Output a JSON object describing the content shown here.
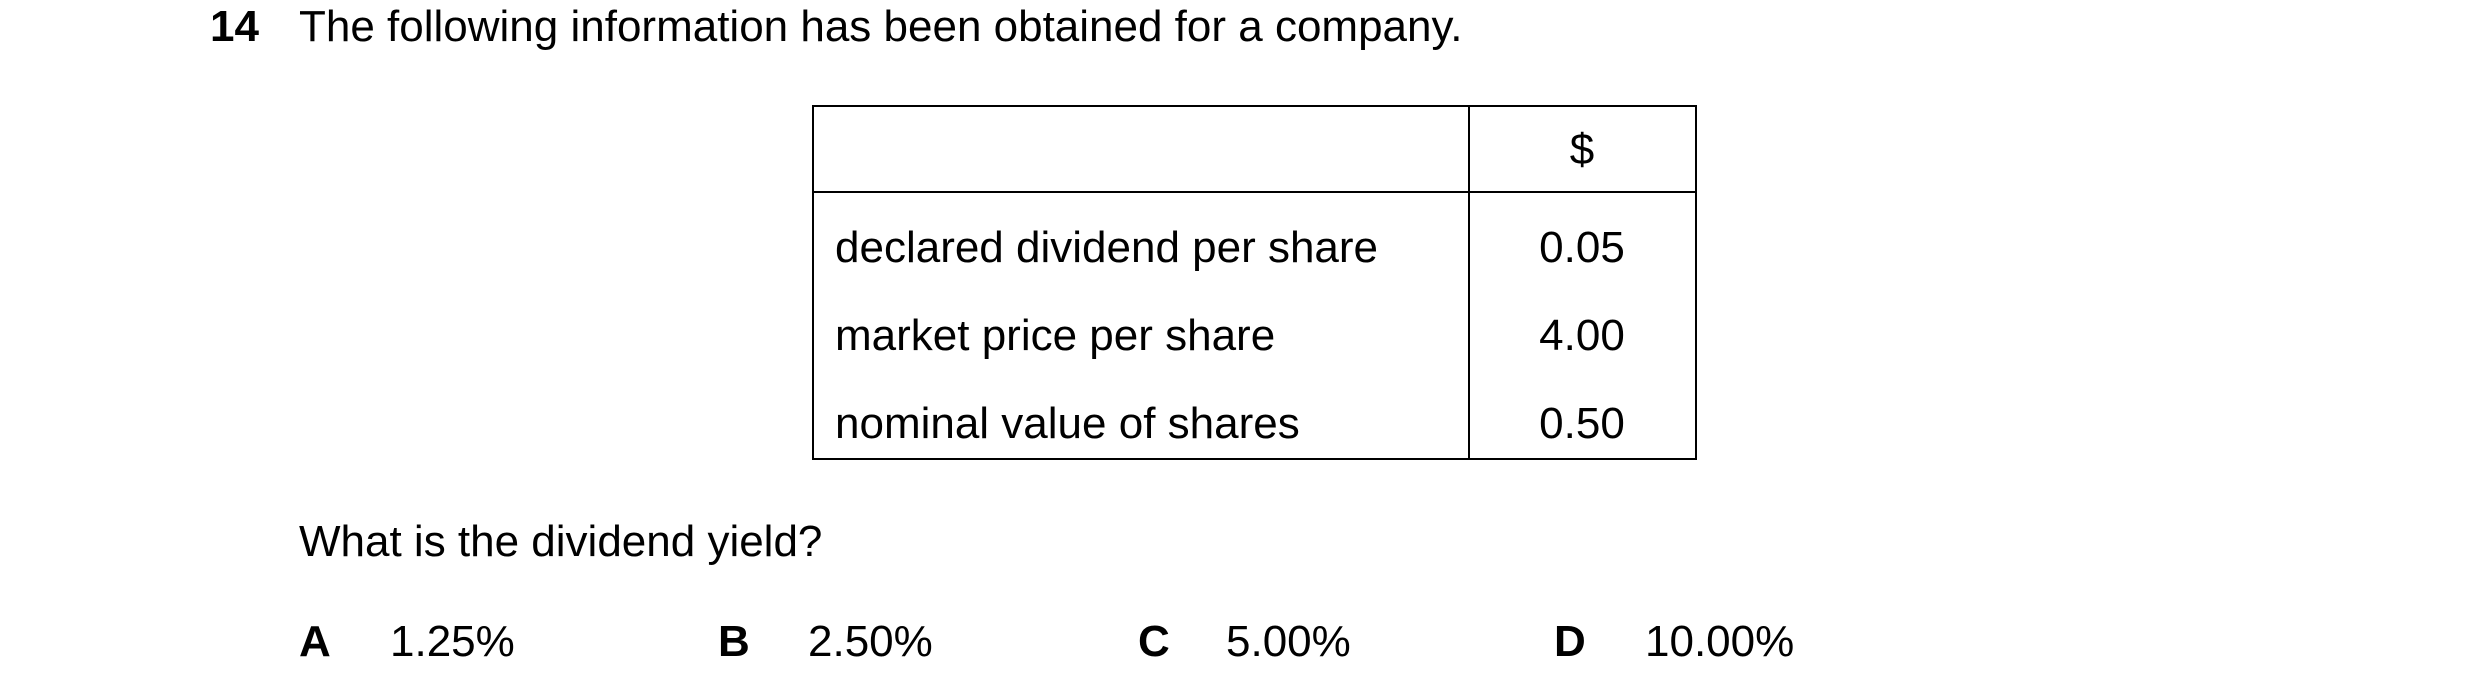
{
  "question": {
    "number": "14",
    "stem": "The following information has been obtained for a company.",
    "table": {
      "header": "$",
      "rows": [
        [
          "declared dividend per share",
          "0.05"
        ],
        [
          "market price per share",
          "4.00"
        ],
        [
          "nominal value of shares",
          "0.50"
        ]
      ]
    },
    "prompt": "What is the dividend yield?",
    "options": [
      {
        "letter": "A",
        "text": "1.25%"
      },
      {
        "letter": "B",
        "text": "2.50%"
      },
      {
        "letter": "C",
        "text": "5.00%"
      },
      {
        "letter": "D",
        "text": "10.00%"
      }
    ]
  }
}
